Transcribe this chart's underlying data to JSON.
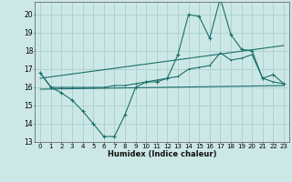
{
  "title": "",
  "xlabel": "Humidex (Indice chaleur)",
  "bg_color": "#cce8e6",
  "grid_color": "#aacfcd",
  "line_color": "#1a6e6a",
  "xlim": [
    -0.5,
    23.5
  ],
  "ylim": [
    13,
    20.7
  ],
  "yticks": [
    13,
    14,
    15,
    16,
    17,
    18,
    19,
    20
  ],
  "xticks": [
    0,
    1,
    2,
    3,
    4,
    5,
    6,
    7,
    8,
    9,
    10,
    11,
    12,
    13,
    14,
    15,
    16,
    17,
    18,
    19,
    20,
    21,
    22,
    23
  ],
  "x": [
    0,
    1,
    2,
    3,
    4,
    5,
    6,
    7,
    8,
    9,
    10,
    11,
    12,
    13,
    14,
    15,
    16,
    17,
    18,
    19,
    20,
    21,
    22,
    23
  ],
  "line1": [
    16.8,
    16.0,
    15.7,
    15.3,
    14.7,
    14.0,
    13.3,
    13.3,
    14.5,
    16.0,
    16.3,
    16.3,
    16.5,
    17.8,
    20.0,
    19.9,
    18.7,
    20.9,
    18.9,
    18.1,
    18.0,
    16.5,
    16.7,
    16.2
  ],
  "line2": [
    16.8,
    16.0,
    16.0,
    16.0,
    16.0,
    16.0,
    16.0,
    16.1,
    16.1,
    16.2,
    16.3,
    16.4,
    16.5,
    16.6,
    17.0,
    17.1,
    17.2,
    17.9,
    17.5,
    17.6,
    17.8,
    16.5,
    16.3,
    16.2
  ],
  "line3": [
    [
      0,
      23
    ],
    [
      15.9,
      16.1
    ]
  ],
  "line4": [
    [
      0,
      23
    ],
    [
      16.5,
      18.3
    ]
  ]
}
